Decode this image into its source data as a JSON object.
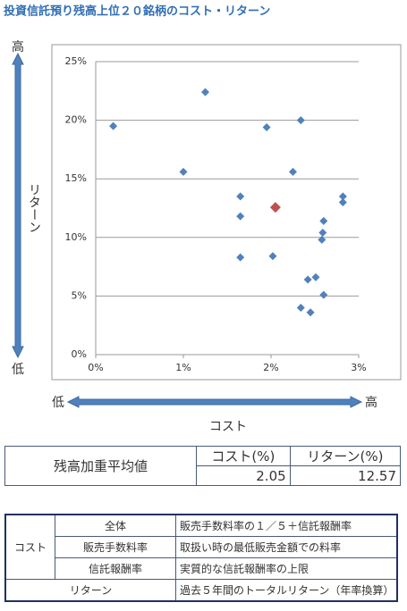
{
  "chart_data": {
    "type": "scatter",
    "title": "投資信託預り残高上位２０銘柄のコスト・リターン",
    "x_axis_label": "コスト",
    "y_axis_label": "リターン",
    "y_high": "高",
    "y_low": "低",
    "x_low": "低",
    "x_high": "高",
    "xlim": [
      0,
      3
    ],
    "ylim": [
      0,
      25
    ],
    "xticks": [
      {
        "value": 0,
        "label": "0%"
      },
      {
        "value": 1,
        "label": "1%"
      },
      {
        "value": 2,
        "label": "2%"
      },
      {
        "value": 3,
        "label": "3%"
      }
    ],
    "yticks": [
      {
        "value": 0,
        "label": "0%"
      },
      {
        "value": 5,
        "label": "5%"
      },
      {
        "value": 10,
        "label": "10%"
      },
      {
        "value": 15,
        "label": "15%"
      },
      {
        "value": 20,
        "label": "20%"
      },
      {
        "value": 25,
        "label": "25%"
      }
    ],
    "grid": true,
    "series": [
      {
        "color": "#4f81bd",
        "x": [
          0.2,
          1.25,
          1.0,
          1.65,
          1.65,
          1.65,
          1.95,
          2.02,
          2.34,
          2.25,
          2.82,
          2.82,
          2.6,
          2.59,
          2.58,
          2.42,
          2.51,
          2.6,
          2.34,
          2.45
        ],
        "values": [
          19.5,
          22.4,
          15.6,
          13.5,
          11.8,
          8.3,
          19.4,
          8.4,
          20.0,
          15.6,
          13.5,
          13.0,
          11.4,
          10.4,
          9.8,
          6.4,
          6.6,
          5.1,
          4.0,
          3.6
        ]
      }
    ],
    "highlight_color": "#c0504d"
  },
  "summary_table": {
    "label": "残高加重平均値",
    "cost_header": "コスト(%)",
    "return_header": "リターン(%)",
    "cost": 2.05,
    "return": 12.57
  },
  "definition_table": {
    "cost_label": "コスト",
    "rows": [
      [
        "全体",
        "販売手数料率の１／５＋信託報酬率"
      ],
      [
        "販売手数料率",
        "取扱い時の最低販売金額での料率"
      ],
      [
        "信託報酬率",
        "実質的な信託報酬率の上限"
      ]
    ],
    "return_label": "リターン",
    "return_text": "過去５年間のトータルリターン（年率換算）"
  }
}
